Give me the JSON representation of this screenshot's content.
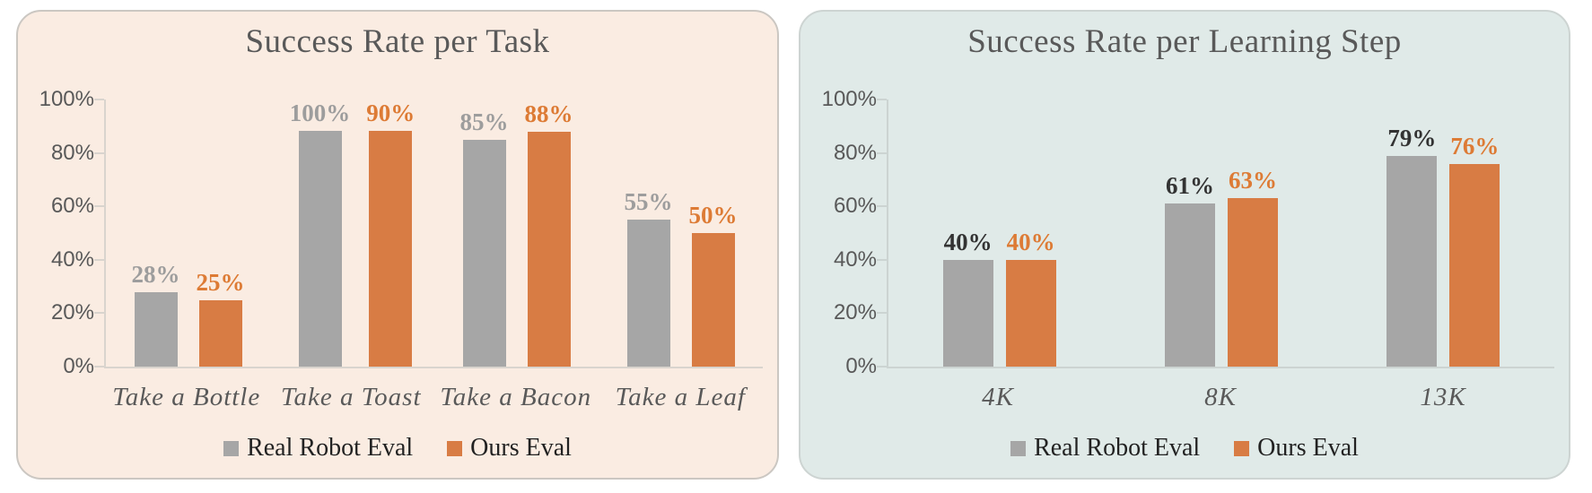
{
  "figure": {
    "background": "#ffffff",
    "value_label_format": "{v}%"
  },
  "chart_data": [
    {
      "type": "bar",
      "title": "Success Rate per Task",
      "panel_bg": "#faece2",
      "panel_border": "#cbc7c2",
      "axis_color": "#d9d4ce",
      "categories": [
        "Take a Bottle",
        "Take a Toast",
        "Take a Bacon",
        "Take a Leaf"
      ],
      "series": [
        {
          "name": "Real Robot Eval",
          "bar_color": "#a6a6a6",
          "label_color": "#9d9d9d",
          "values": [
            28,
            100,
            85,
            55
          ]
        },
        {
          "name": "Ours Eval",
          "bar_color": "#d87c44",
          "label_color": "#dd7b35",
          "values": [
            25,
            90,
            88,
            50
          ]
        }
      ],
      "y_axis": {
        "min": 0,
        "max": 100,
        "ticks": [
          {
            "label": "100%",
            "value": 100
          },
          {
            "label": "80%",
            "value": 80
          },
          {
            "label": "60%",
            "value": 60
          },
          {
            "label": "40%",
            "value": 40
          },
          {
            "label": "20%",
            "value": 20
          },
          {
            "label": "0%",
            "value": 0
          }
        ]
      },
      "legend": [
        "Real Robot Eval",
        "Ours Eval"
      ],
      "grid": false,
      "legend_position": "bottom"
    },
    {
      "type": "bar",
      "title": "Success Rate per Learning Step",
      "panel_bg": "#e0eae8",
      "panel_border": "#cdd4d2",
      "axis_color": "#ccd4d2",
      "categories": [
        "4K",
        "8K",
        "13K"
      ],
      "series": [
        {
          "name": "Real Robot Eval",
          "bar_color": "#a6a6a6",
          "label_color": "#333333",
          "values": [
            40,
            61,
            79
          ]
        },
        {
          "name": "Ours Eval",
          "bar_color": "#d87c44",
          "label_color": "#dd7b35",
          "values": [
            40,
            63,
            76
          ]
        }
      ],
      "y_axis": {
        "min": 0,
        "max": 100,
        "ticks": [
          {
            "label": "100%",
            "value": 100
          },
          {
            "label": "80%",
            "value": 80
          },
          {
            "label": "60%",
            "value": 60
          },
          {
            "label": "40%",
            "value": 40
          },
          {
            "label": "20%",
            "value": 20
          },
          {
            "label": "0%",
            "value": 0
          }
        ]
      },
      "legend": [
        "Real Robot Eval",
        "Ours Eval"
      ],
      "grid": false,
      "legend_position": "bottom"
    }
  ]
}
